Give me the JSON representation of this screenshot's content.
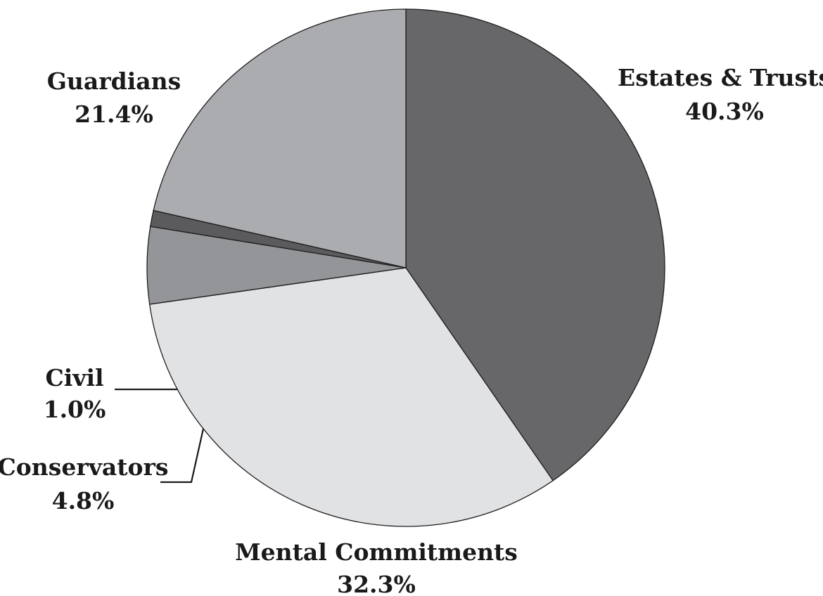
{
  "chart_data": {
    "type": "pie",
    "title": "",
    "slices": [
      {
        "label": "Estates & Trusts",
        "value": 40.3,
        "value_label": "40.3%",
        "color": "#676769"
      },
      {
        "label": "Mental Commitments",
        "value": 32.3,
        "value_label": "32.3%",
        "color": "#e1e2e4"
      },
      {
        "label": "Conservators",
        "value": 4.8,
        "value_label": "4.8%",
        "color": "#949598"
      },
      {
        "label": "Civil",
        "value": 1.0,
        "value_label": "1.0%",
        "color": "#5b5b5d"
      },
      {
        "label": "Guardians",
        "value": 21.4,
        "value_label": "21.4%",
        "color": "#abacb0"
      }
    ]
  }
}
